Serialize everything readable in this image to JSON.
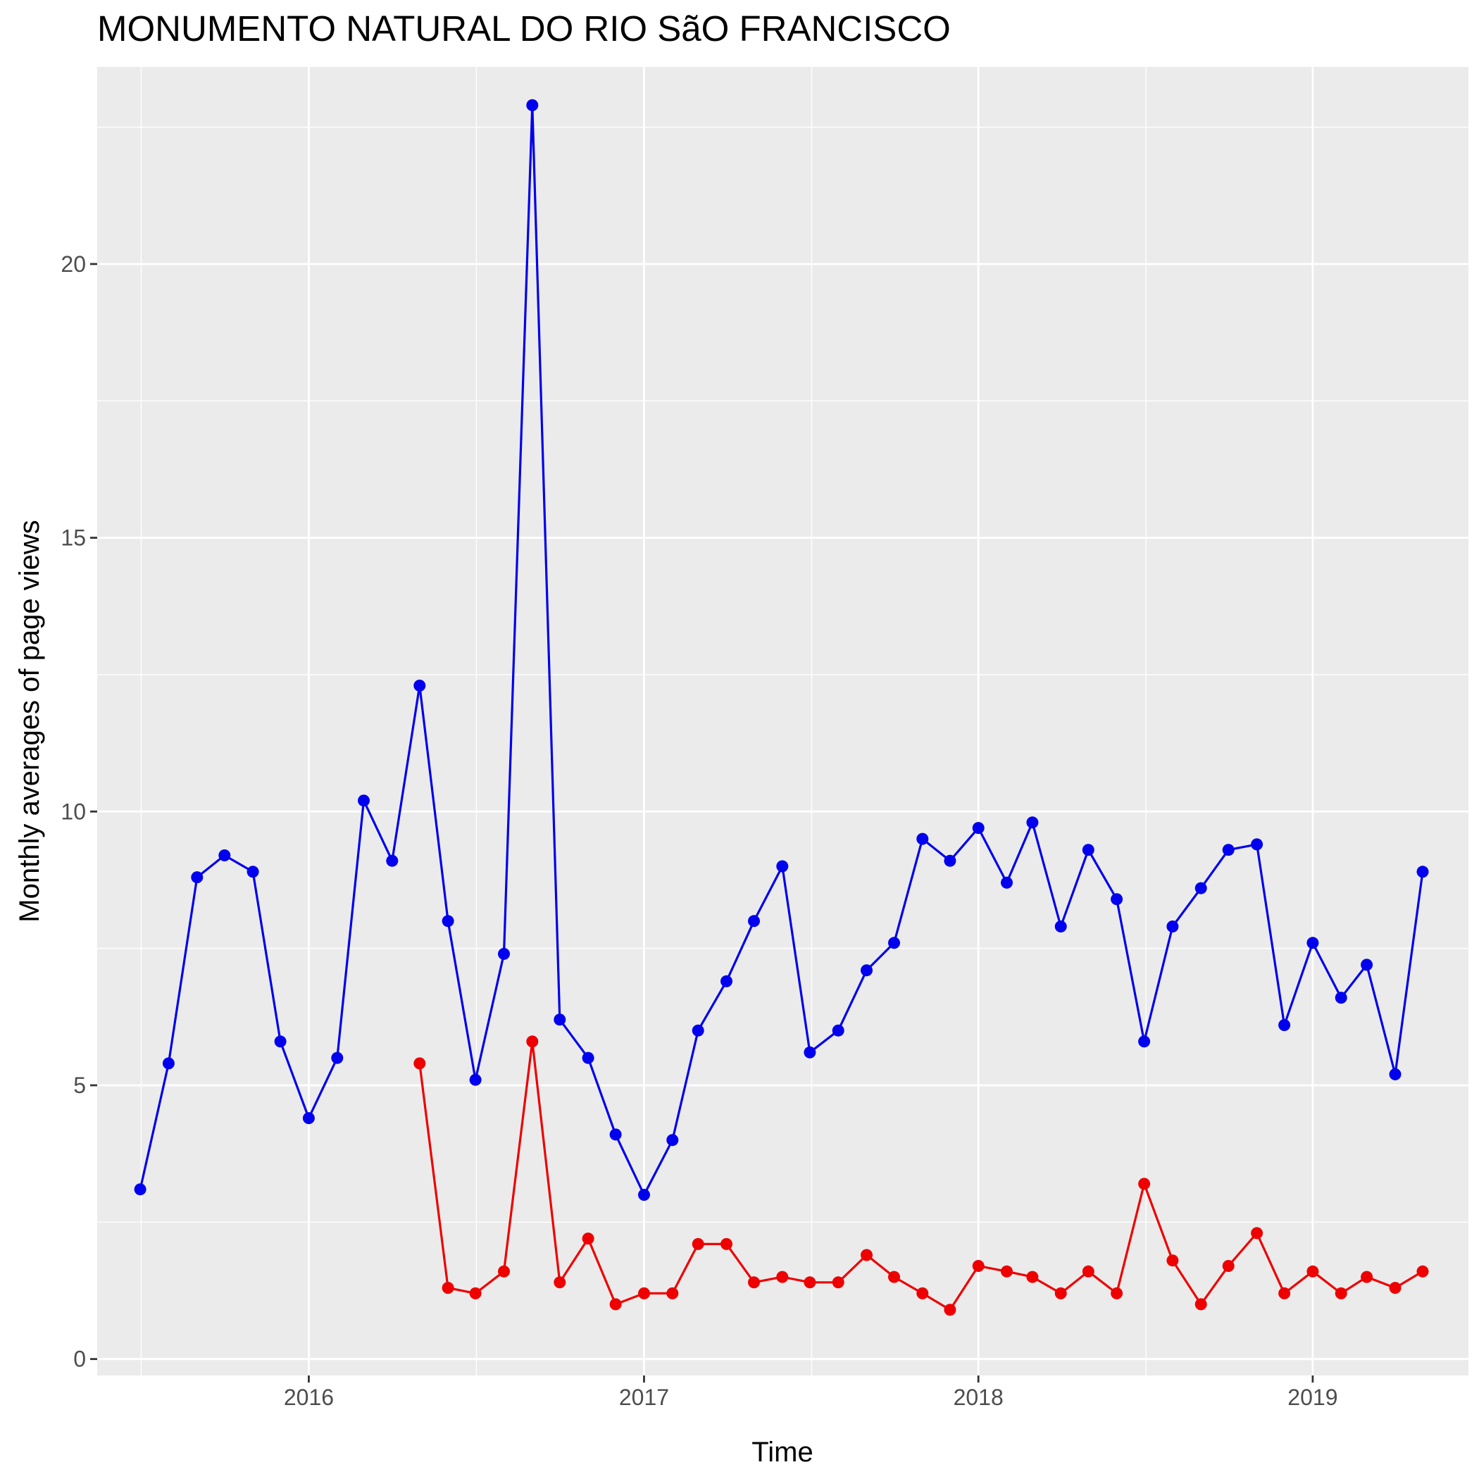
{
  "chart_data": {
    "type": "line",
    "title": "MONUMENTO NATURAL DO RIO SãO FRANCISCO",
    "xlabel": "Time",
    "ylabel": "Monthly averages of page views",
    "xlim": [
      "2015-05-15",
      "2019-06-20"
    ],
    "ylim": [
      -0.3,
      23.6
    ],
    "x_ticks": [
      {
        "date": "2016-01-01",
        "label": "2016"
      },
      {
        "date": "2017-01-01",
        "label": "2017"
      },
      {
        "date": "2018-01-01",
        "label": "2018"
      },
      {
        "date": "2019-01-01",
        "label": "2019"
      }
    ],
    "y_ticks": [
      0,
      5,
      10,
      15,
      20
    ],
    "grid": true,
    "legend": "none",
    "colors": {
      "panel": "#ebebeb",
      "grid": "#ffffff",
      "tick": "#333333"
    },
    "series": [
      {
        "color": "#0000ee",
        "points": [
          [
            "2015-07-01",
            3.1
          ],
          [
            "2015-08-01",
            5.4
          ],
          [
            "2015-09-01",
            8.8
          ],
          [
            "2015-10-01",
            9.2
          ],
          [
            "2015-11-01",
            8.9
          ],
          [
            "2015-12-01",
            5.8
          ],
          [
            "2016-01-01",
            4.4
          ],
          [
            "2016-02-01",
            5.5
          ],
          [
            "2016-03-01",
            10.2
          ],
          [
            "2016-04-01",
            9.1
          ],
          [
            "2016-05-01",
            12.3
          ],
          [
            "2016-06-01",
            8.0
          ],
          [
            "2016-07-01",
            5.1
          ],
          [
            "2016-08-01",
            7.4
          ],
          [
            "2016-09-01",
            22.9
          ],
          [
            "2016-10-01",
            6.2
          ],
          [
            "2016-11-01",
            5.5
          ],
          [
            "2016-12-01",
            4.1
          ],
          [
            "2017-01-01",
            3.0
          ],
          [
            "2017-02-01",
            4.0
          ],
          [
            "2017-03-01",
            6.0
          ],
          [
            "2017-04-01",
            6.9
          ],
          [
            "2017-05-01",
            8.0
          ],
          [
            "2017-06-01",
            9.0
          ],
          [
            "2017-07-01",
            5.6
          ],
          [
            "2017-08-01",
            6.0
          ],
          [
            "2017-09-01",
            7.1
          ],
          [
            "2017-10-01",
            7.6
          ],
          [
            "2017-11-01",
            9.5
          ],
          [
            "2017-12-01",
            9.1
          ],
          [
            "2018-01-01",
            9.7
          ],
          [
            "2018-02-01",
            8.7
          ],
          [
            "2018-03-01",
            9.8
          ],
          [
            "2018-04-01",
            7.9
          ],
          [
            "2018-05-01",
            9.3
          ],
          [
            "2018-06-01",
            8.4
          ],
          [
            "2018-07-01",
            5.8
          ],
          [
            "2018-08-01",
            7.9
          ],
          [
            "2018-09-01",
            8.6
          ],
          [
            "2018-10-01",
            9.3
          ],
          [
            "2018-11-01",
            9.4
          ],
          [
            "2018-12-01",
            6.1
          ],
          [
            "2019-01-01",
            7.6
          ],
          [
            "2019-02-01",
            6.6
          ],
          [
            "2019-03-01",
            7.2
          ],
          [
            "2019-04-01",
            5.2
          ],
          [
            "2019-05-01",
            8.9
          ]
        ]
      },
      {
        "color": "#ee0000",
        "points": [
          [
            "2016-05-01",
            5.4
          ],
          [
            "2016-06-01",
            1.3
          ],
          [
            "2016-07-01",
            1.2
          ],
          [
            "2016-08-01",
            1.6
          ],
          [
            "2016-09-01",
            5.8
          ],
          [
            "2016-10-01",
            1.4
          ],
          [
            "2016-11-01",
            2.2
          ],
          [
            "2016-12-01",
            1.0
          ],
          [
            "2017-01-01",
            1.2
          ],
          [
            "2017-02-01",
            1.2
          ],
          [
            "2017-03-01",
            2.1
          ],
          [
            "2017-04-01",
            2.1
          ],
          [
            "2017-05-01",
            1.4
          ],
          [
            "2017-06-01",
            1.5
          ],
          [
            "2017-07-01",
            1.4
          ],
          [
            "2017-08-01",
            1.4
          ],
          [
            "2017-09-01",
            1.9
          ],
          [
            "2017-10-01",
            1.5
          ],
          [
            "2017-11-01",
            1.2
          ],
          [
            "2017-12-01",
            0.9
          ],
          [
            "2018-01-01",
            1.7
          ],
          [
            "2018-02-01",
            1.6
          ],
          [
            "2018-03-01",
            1.5
          ],
          [
            "2018-04-01",
            1.2
          ],
          [
            "2018-05-01",
            1.6
          ],
          [
            "2018-06-01",
            1.2
          ],
          [
            "2018-07-01",
            3.2
          ],
          [
            "2018-08-01",
            1.8
          ],
          [
            "2018-09-01",
            1.0
          ],
          [
            "2018-10-01",
            1.7
          ],
          [
            "2018-11-01",
            2.3
          ],
          [
            "2018-12-01",
            1.2
          ],
          [
            "2019-01-01",
            1.6
          ],
          [
            "2019-02-01",
            1.2
          ],
          [
            "2019-03-01",
            1.5
          ],
          [
            "2019-04-01",
            1.3
          ],
          [
            "2019-05-01",
            1.6
          ]
        ]
      }
    ]
  }
}
